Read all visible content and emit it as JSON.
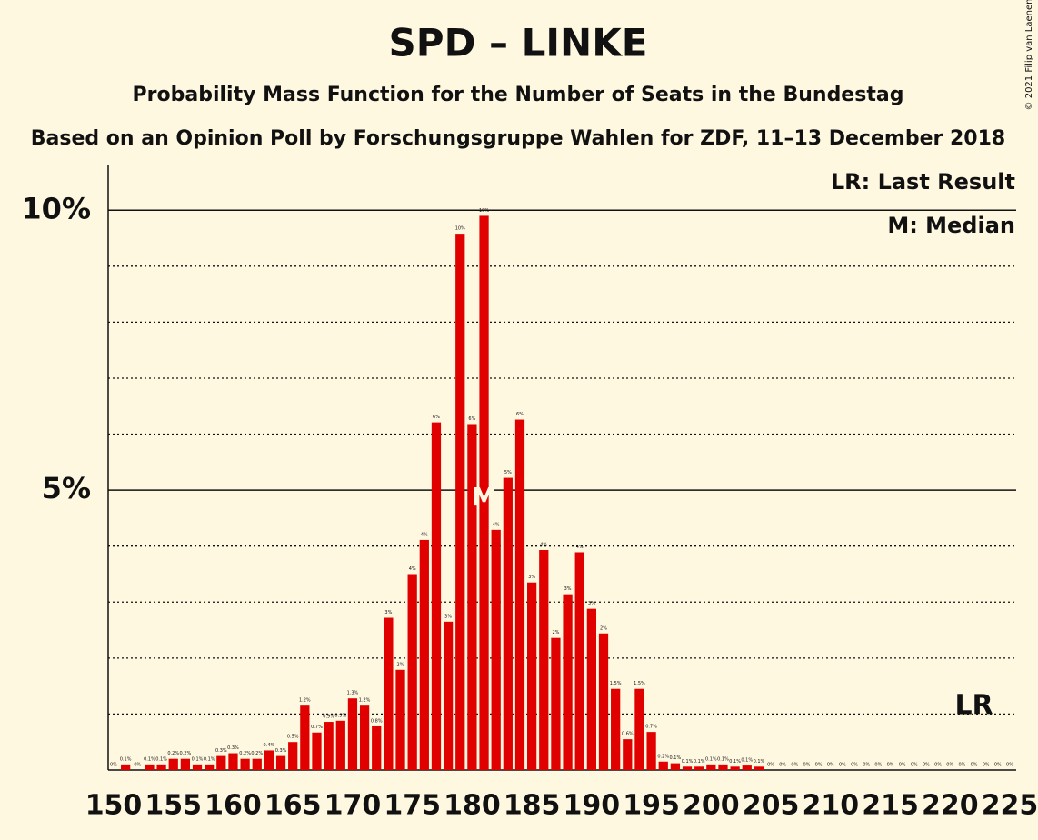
{
  "chart_data": {
    "type": "bar",
    "title": "SPD – LINKE",
    "subtitle": "Probability Mass Function for the Number of Seats in the Bundestag",
    "source_note": "Based on an Opinion Poll by Forschungsgruppe Wahlen for ZDF, 11–13 December 2018",
    "copyright": "© 2021 Filip van Laenen",
    "legend": [
      "LR: Last Result",
      "M: Median"
    ],
    "color": "#e00000",
    "x": [
      150,
      151,
      152,
      153,
      154,
      155,
      156,
      157,
      158,
      159,
      160,
      161,
      162,
      163,
      164,
      165,
      166,
      167,
      168,
      169,
      170,
      171,
      172,
      173,
      174,
      175,
      176,
      177,
      178,
      179,
      180,
      181,
      182,
      183,
      184,
      185,
      186,
      187,
      188,
      189,
      190,
      191,
      192,
      193,
      194,
      195,
      196,
      197,
      198,
      199,
      200,
      201,
      202,
      203,
      204,
      205,
      206,
      207,
      208,
      209,
      210,
      211,
      212,
      213,
      214,
      215,
      216,
      217,
      218,
      219,
      220,
      221,
      222,
      223,
      224,
      225
    ],
    "values": [
      0,
      0.1,
      0,
      0.1,
      0.1,
      0.2,
      0.2,
      0.1,
      0.1,
      0.25,
      0.3,
      0.2,
      0.2,
      0.35,
      0.25,
      0.5,
      1.15,
      0.67,
      0.86,
      0.88,
      1.28,
      1.15,
      0.78,
      2.72,
      1.79,
      3.5,
      4.11,
      6.21,
      2.65,
      9.58,
      6.18,
      9.9,
      4.29,
      5.22,
      6.26,
      3.35,
      3.93,
      2.36,
      3.14,
      3.89,
      2.88,
      2.44,
      1.45,
      0.55,
      1.45,
      0.68,
      0.15,
      0.12,
      0.06,
      0.06,
      0.1,
      0.1,
      0.06,
      0.08,
      0.06,
      0,
      0,
      0,
      0,
      0,
      0,
      0,
      0,
      0,
      0,
      0,
      0,
      0,
      0,
      0,
      0,
      0,
      0,
      0,
      0,
      0
    ],
    "value_labels": [
      "0%",
      "0.1%",
      "0%",
      "0.1%",
      "0.1%",
      "0.2%",
      "0.2%",
      "0.1%",
      "0.1%",
      "0.3%",
      "0.3%",
      "0.2%",
      "0.2%",
      "0.4%",
      "0.3%",
      "0.5%",
      "1.2%",
      "0.7%",
      "0.9%",
      "0.9%",
      "1.3%",
      "1.2%",
      "0.8%",
      "3%",
      "2%",
      "4%",
      "4%",
      "6%",
      "3%",
      "10%",
      "6%",
      "10%",
      "4%",
      "5%",
      "6%",
      "3%",
      "4%",
      "2%",
      "3%",
      "4%",
      "3%",
      "2%",
      "1.5%",
      "0.6%",
      "1.5%",
      "0.7%",
      "0.2%",
      "0.1%",
      "0.1%",
      "0.1%",
      "0.1%",
      "0.1%",
      "0.1%",
      "0.1%",
      "0.1%",
      "0%",
      "0%",
      "0%",
      "0%",
      "0%",
      "0%",
      "0%",
      "0%",
      "0%",
      "0%",
      "0%",
      "0%",
      "0%",
      "0%",
      "0%",
      "0%",
      "0%",
      "0%",
      "0%",
      "0%",
      "0%"
    ],
    "xlim": [
      150,
      225
    ],
    "xticks": [
      150,
      155,
      160,
      165,
      170,
      175,
      180,
      185,
      190,
      195,
      200,
      205,
      210,
      215,
      220,
      225
    ],
    "ylim": [
      0,
      10.8
    ],
    "yticks": [
      {
        "value": 5,
        "label": "5%"
      },
      {
        "value": 10,
        "label": "10%"
      }
    ],
    "minor_yticks": [
      1,
      2,
      3,
      4,
      6,
      7,
      8,
      9
    ],
    "grid": true,
    "median": 181,
    "median_label": "M",
    "last_result": 222,
    "last_result_label": "LR"
  }
}
